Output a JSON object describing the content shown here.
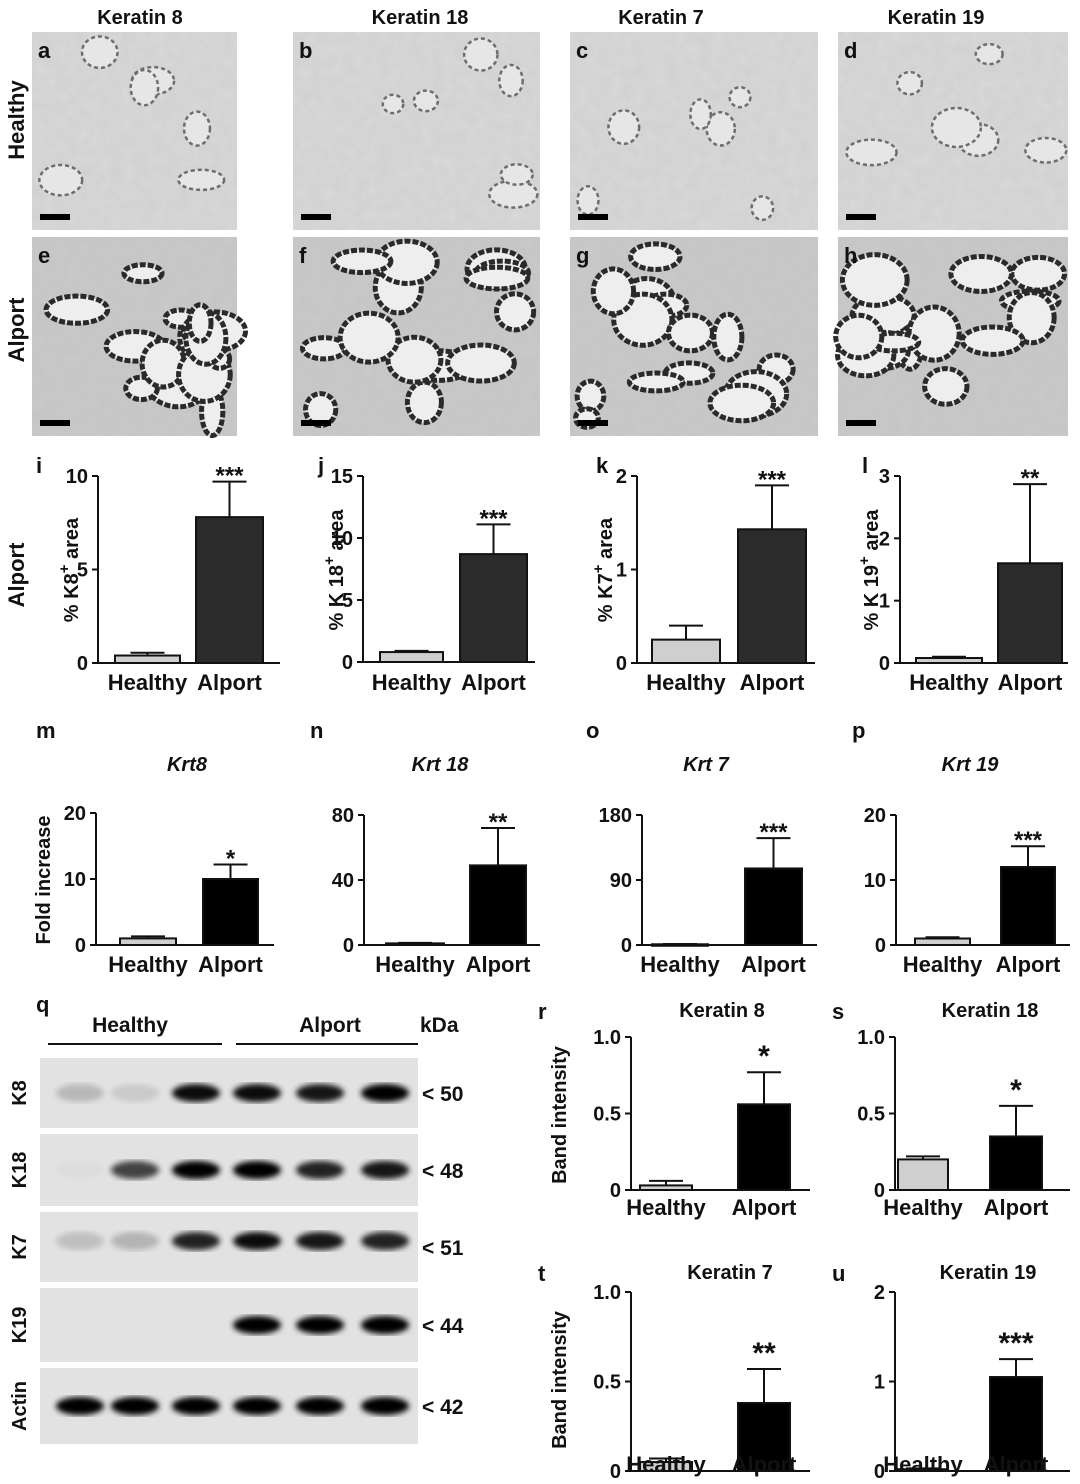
{
  "figure": {
    "column_headers": [
      "Keratin 8",
      "Keratin 18",
      "Keratin 7",
      "Keratin 19"
    ],
    "row_labels": [
      "Healthy",
      "Alport"
    ],
    "micrograph_panels": [
      {
        "letter": "a",
        "row": "Healthy",
        "stain": "Keratin 8",
        "intensity": "light"
      },
      {
        "letter": "b",
        "row": "Healthy",
        "stain": "Keratin 18",
        "intensity": "light"
      },
      {
        "letter": "c",
        "row": "Healthy",
        "stain": "Keratin 7",
        "intensity": "light"
      },
      {
        "letter": "d",
        "row": "Healthy",
        "stain": "Keratin 19",
        "intensity": "light"
      },
      {
        "letter": "e",
        "row": "Alport",
        "stain": "Keratin 8",
        "intensity": "dark"
      },
      {
        "letter": "f",
        "row": "Alport",
        "stain": "Keratin 18",
        "intensity": "dark"
      },
      {
        "letter": "g",
        "row": "Alport",
        "stain": "Keratin 7",
        "intensity": "dark"
      },
      {
        "letter": "h",
        "row": "Alport",
        "stain": "Keratin 19",
        "intensity": "dark"
      }
    ],
    "side_labels": {
      "area_row": "Alport"
    },
    "colors": {
      "healthy_bar": "#cfcfcf",
      "alport_bar_area": "#2b2b2b",
      "alport_bar": "#000000"
    }
  },
  "chart_data": [
    {
      "id": "i",
      "type": "bar",
      "title": "",
      "ylabel_parts": [
        "% K8",
        "+",
        " area"
      ],
      "categories": [
        "Healthy",
        "Alport"
      ],
      "values": [
        0.4,
        7.8
      ],
      "errors": [
        0.15,
        1.9
      ],
      "ylim": [
        0,
        10
      ],
      "yticks": [
        "0",
        "5",
        "10"
      ],
      "significance": "***"
    },
    {
      "id": "j",
      "type": "bar",
      "title": "",
      "ylabel_parts": [
        "% K 18",
        "+",
        " area"
      ],
      "categories": [
        "Healthy",
        "Alport"
      ],
      "values": [
        0.8,
        8.7
      ],
      "errors": [
        0.1,
        2.4
      ],
      "ylim": [
        0,
        15
      ],
      "yticks": [
        "0",
        "5",
        "10",
        "15"
      ],
      "significance": "***"
    },
    {
      "id": "k",
      "type": "bar",
      "title": "",
      "ylabel_parts": [
        "% K7",
        "+",
        " area"
      ],
      "categories": [
        "Healthy",
        "Alport"
      ],
      "values": [
        0.25,
        1.43
      ],
      "errors": [
        0.15,
        0.47
      ],
      "ylim": [
        0,
        2
      ],
      "yticks": [
        "0",
        "1",
        "2"
      ],
      "significance": "***"
    },
    {
      "id": "l",
      "type": "bar",
      "title": "",
      "ylabel_parts": [
        "% K 19",
        "+",
        " area"
      ],
      "categories": [
        "Healthy",
        "Alport"
      ],
      "values": [
        0.08,
        1.6
      ],
      "errors": [
        0.02,
        1.27
      ],
      "ylim": [
        0,
        3
      ],
      "yticks": [
        "0",
        "1",
        "2",
        "3"
      ],
      "significance": "**"
    },
    {
      "id": "m",
      "type": "bar",
      "title": "Krt8",
      "ylabel": "Fold increase",
      "categories": [
        "Healthy",
        "Alport"
      ],
      "values": [
        1,
        10
      ],
      "errors": [
        0.3,
        2.2
      ],
      "ylim": [
        0,
        20
      ],
      "yticks": [
        "0",
        "10",
        "20"
      ],
      "significance": "*"
    },
    {
      "id": "n",
      "type": "bar",
      "title": "Krt 18",
      "ylabel": "",
      "categories": [
        "Healthy",
        "Alport"
      ],
      "values": [
        1,
        49
      ],
      "errors": [
        0.3,
        23
      ],
      "ylim": [
        0,
        80
      ],
      "yticks": [
        "0",
        "40",
        "80"
      ],
      "significance": "**"
    },
    {
      "id": "o",
      "type": "bar",
      "title": "Krt 7",
      "ylabel": "",
      "categories": [
        "Healthy",
        "Alport"
      ],
      "values": [
        1,
        106
      ],
      "errors": [
        0.3,
        42
      ],
      "ylim": [
        0,
        180
      ],
      "yticks": [
        "0",
        "90",
        "180"
      ],
      "significance": "***"
    },
    {
      "id": "p",
      "type": "bar",
      "title": "Krt 19",
      "ylabel": "",
      "categories": [
        "Healthy",
        "Alport"
      ],
      "values": [
        1,
        12
      ],
      "errors": [
        0.2,
        3.2
      ],
      "ylim": [
        0,
        20
      ],
      "yticks": [
        "0",
        "10",
        "20"
      ],
      "significance": "***"
    },
    {
      "id": "r",
      "type": "bar",
      "title": "Keratin 8",
      "ylabel": "Band intensity",
      "categories": [
        "Healthy",
        "Alport"
      ],
      "values": [
        0.03,
        0.56
      ],
      "errors": [
        0.03,
        0.21
      ],
      "ylim": [
        0,
        1.0
      ],
      "yticks": [
        "0",
        "0.5",
        "1.0"
      ],
      "significance": "*"
    },
    {
      "id": "s",
      "type": "bar",
      "title": "Keratin 18",
      "ylabel": "",
      "categories": [
        "Healthy",
        "Alport"
      ],
      "values": [
        0.2,
        0.35
      ],
      "errors": [
        0.02,
        0.2
      ],
      "ylim": [
        0,
        1.0
      ],
      "yticks": [
        "0",
        "0.5",
        "1.0"
      ],
      "significance": "*"
    },
    {
      "id": "t",
      "type": "bar",
      "title": "Keratin 7",
      "ylabel": "Band intensity",
      "categories": [
        "Healthy",
        "Alport"
      ],
      "values": [
        0.05,
        0.38
      ],
      "errors": [
        0.02,
        0.19
      ],
      "ylim": [
        0,
        1.0
      ],
      "yticks": [
        "0",
        "0.5",
        "1.0"
      ],
      "significance": "**"
    },
    {
      "id": "u",
      "type": "bar",
      "title": "Keratin 19",
      "ylabel": "",
      "categories": [
        "Healthy",
        "Alport"
      ],
      "values": [
        0.02,
        1.05
      ],
      "errors": [
        0.01,
        0.2
      ],
      "ylim": [
        0,
        2
      ],
      "yticks": [
        "0",
        "1",
        "2"
      ],
      "significance": "***"
    }
  ],
  "western_blot": {
    "letter": "q",
    "group_labels": [
      "Healthy",
      "Alport"
    ],
    "unit_label": "kDa",
    "rows": [
      {
        "name": "K8",
        "kda": "< 50",
        "bands": [
          0.18,
          0.1,
          0.95,
          0.9,
          1.0
        ]
      },
      {
        "name": "K18",
        "kda": "< 48",
        "bands": [
          0.02,
          0.7,
          1.0,
          0.85,
          0.9
        ]
      },
      {
        "name": "K7",
        "kda": "< 51",
        "bands": [
          0.15,
          0.2,
          0.85,
          0.95,
          0.9,
          0.85
        ]
      },
      {
        "name": "K19",
        "kda": "< 44",
        "bands": [
          0.0,
          0.0,
          0.0,
          1.0,
          1.0,
          1.0
        ]
      },
      {
        "name": "Actin",
        "kda": "< 42",
        "bands": [
          1.0,
          1.0,
          1.0,
          1.0,
          1.0,
          1.0
        ]
      }
    ]
  }
}
